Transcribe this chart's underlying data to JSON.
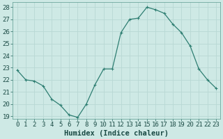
{
  "x": [
    0,
    1,
    2,
    3,
    4,
    5,
    6,
    7,
    8,
    9,
    10,
    11,
    12,
    13,
    14,
    15,
    16,
    17,
    18,
    19,
    20,
    21,
    22,
    23
  ],
  "y": [
    22.8,
    22.0,
    21.9,
    21.5,
    20.4,
    19.9,
    19.1,
    18.9,
    20.0,
    21.6,
    22.9,
    22.9,
    25.9,
    27.0,
    27.1,
    28.0,
    27.8,
    27.5,
    26.6,
    25.9,
    24.8,
    22.9,
    22.0,
    21.3
  ],
  "xlabel": "Humidex (Indice chaleur)",
  "ylim_min": 18.8,
  "ylim_max": 28.4,
  "xlim_min": -0.5,
  "xlim_max": 23.5,
  "yticks": [
    19,
    20,
    21,
    22,
    23,
    24,
    25,
    26,
    27,
    28
  ],
  "xticks": [
    0,
    1,
    2,
    3,
    4,
    5,
    6,
    7,
    8,
    9,
    10,
    11,
    12,
    13,
    14,
    15,
    16,
    17,
    18,
    19,
    20,
    21,
    22,
    23
  ],
  "line_color": "#2e7e72",
  "marker_size": 2.5,
  "bg_color": "#cee9e5",
  "grid_color": "#b8d8d4",
  "xlabel_fontsize": 7.5,
  "tick_fontsize": 6.5,
  "tick_color": "#1a5c54",
  "label_color": "#1a4a44"
}
